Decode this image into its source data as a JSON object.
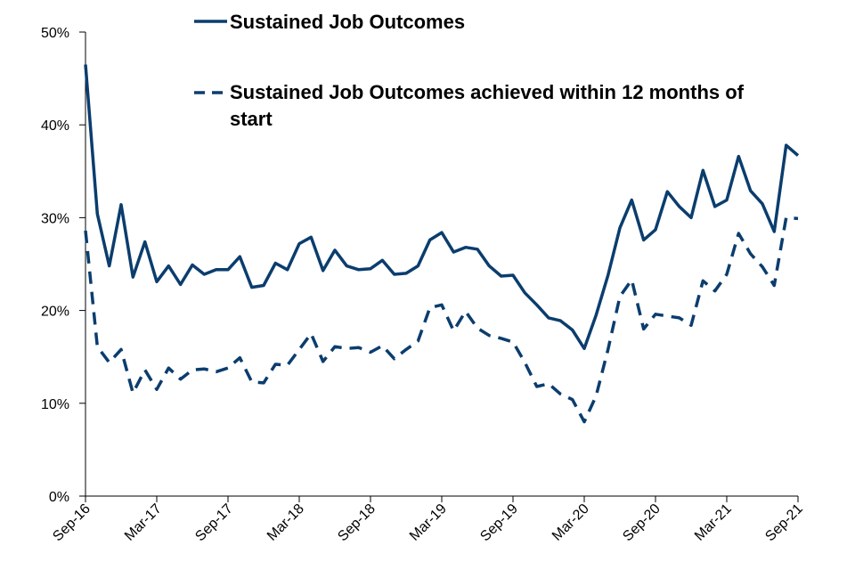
{
  "chart_data": {
    "type": "line",
    "title": "",
    "xlabel": "",
    "ylabel": "",
    "ylim": [
      0,
      50
    ],
    "y_ticks": [
      0,
      10,
      20,
      30,
      40,
      50
    ],
    "y_tick_format": "percent",
    "x_ticks": [
      "Sep-16",
      "Mar-17",
      "Sep-17",
      "Mar-18",
      "Sep-18",
      "Mar-19",
      "Sep-19",
      "Mar-20",
      "Sep-20",
      "Mar-21",
      "Sep-21"
    ],
    "x_tick_index": [
      0,
      6,
      12,
      18,
      24,
      30,
      36,
      42,
      48,
      54,
      60
    ],
    "grid": false,
    "legend_position": "top-right",
    "color": "#0b3d6e",
    "x": [
      "Sep-16",
      "Oct-16",
      "Nov-16",
      "Dec-16",
      "Jan-17",
      "Feb-17",
      "Mar-17",
      "Apr-17",
      "May-17",
      "Jun-17",
      "Jul-17",
      "Aug-17",
      "Sep-17",
      "Oct-17",
      "Nov-17",
      "Dec-17",
      "Jan-18",
      "Feb-18",
      "Mar-18",
      "Apr-18",
      "May-18",
      "Jun-18",
      "Jul-18",
      "Aug-18",
      "Sep-18",
      "Oct-18",
      "Nov-18",
      "Dec-18",
      "Jan-19",
      "Feb-19",
      "Mar-19",
      "Apr-19",
      "May-19",
      "Jun-19",
      "Jul-19",
      "Aug-19",
      "Sep-19",
      "Oct-19",
      "Nov-19",
      "Dec-19",
      "Jan-20",
      "Feb-20",
      "Mar-20",
      "Apr-20",
      "May-20",
      "Jun-20",
      "Jul-20",
      "Aug-20",
      "Sep-20",
      "Oct-20",
      "Nov-20",
      "Dec-20",
      "Jan-21",
      "Feb-21",
      "Mar-21",
      "Apr-21",
      "May-21",
      "Jun-21",
      "Jul-21",
      "Aug-21",
      "Sep-21"
    ],
    "series": [
      {
        "name": "Sustained Job Outcomes",
        "style": "solid",
        "values": [
          46.5,
          30.4,
          24.8,
          31.4,
          23.6,
          27.4,
          23.1,
          24.8,
          22.8,
          24.9,
          23.9,
          24.4,
          24.4,
          25.8,
          22.5,
          22.7,
          25.1,
          24.4,
          27.2,
          27.9,
          24.3,
          26.5,
          24.8,
          24.4,
          24.5,
          25.4,
          23.9,
          24.0,
          24.8,
          27.6,
          28.4,
          26.3,
          26.8,
          26.6,
          24.8,
          23.7,
          23.8,
          21.9,
          20.6,
          19.2,
          18.9,
          17.9,
          15.9,
          19.5,
          23.8,
          28.9,
          31.9,
          27.6,
          28.7,
          32.8,
          31.2,
          30.0,
          35.1,
          31.2,
          31.9,
          36.6,
          32.9,
          31.5,
          28.5,
          37.8,
          36.7
        ]
      },
      {
        "name": "Sustained Job Outcomes achieved within 12 months of start",
        "style": "dashed",
        "values": [
          28.6,
          16.1,
          14.4,
          15.8,
          11.1,
          13.6,
          11.5,
          13.8,
          12.6,
          13.6,
          13.7,
          13.4,
          13.8,
          14.9,
          12.3,
          12.2,
          14.2,
          14.1,
          15.8,
          17.5,
          14.5,
          16.1,
          15.9,
          16.0,
          15.5,
          16.2,
          14.8,
          15.8,
          16.7,
          20.3,
          20.6,
          17.8,
          19.9,
          18.1,
          17.3,
          17.0,
          16.6,
          14.4,
          11.8,
          12.1,
          11.0,
          10.4,
          8.0,
          10.8,
          15.8,
          21.5,
          23.3,
          18.0,
          19.6,
          19.4,
          19.2,
          18.4,
          23.2,
          22.1,
          23.9,
          28.3,
          26.1,
          24.7,
          22.7,
          30.0,
          29.9
        ]
      }
    ]
  }
}
